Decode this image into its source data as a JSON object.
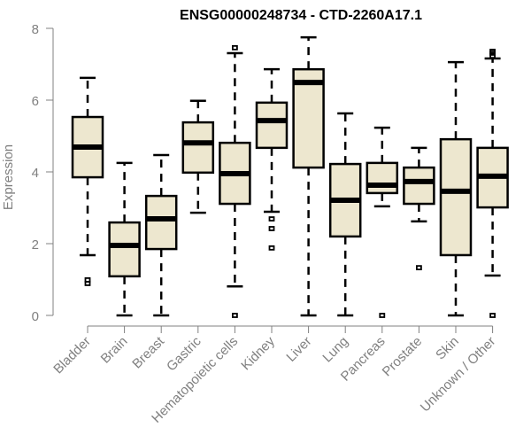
{
  "chart_data": {
    "type": "boxplot",
    "title": "ENSG00000248734 - CTD-2260A17.1",
    "xlabel": "",
    "ylabel": "Expression",
    "ylim": [
      0,
      8
    ],
    "yticks": [
      0,
      2,
      4,
      6,
      8
    ],
    "grid": false,
    "legend": "none",
    "box_color": "#ede7cf",
    "categories": [
      "Bladder",
      "Brain",
      "Breast",
      "Gastric",
      "Hematopoietic cells",
      "Kidney",
      "Liver",
      "Lung",
      "Pancreas",
      "Prostate",
      "Skin",
      "Unknown / Other"
    ],
    "series": [
      {
        "name": "Bladder",
        "whisker_low": 1.68,
        "q1": 3.85,
        "median": 4.69,
        "q3": 5.53,
        "whisker_high": 6.62,
        "outliers": [
          0.99,
          0.89
        ]
      },
      {
        "name": "Brain",
        "whisker_low": 0.0,
        "q1": 1.09,
        "median": 1.95,
        "q3": 2.59,
        "whisker_high": 4.25,
        "outliers": []
      },
      {
        "name": "Breast",
        "whisker_low": 0.0,
        "q1": 1.85,
        "median": 2.69,
        "q3": 3.33,
        "whisker_high": 4.47,
        "outliers": []
      },
      {
        "name": "Gastric",
        "whisker_low": 2.86,
        "q1": 3.98,
        "median": 4.81,
        "q3": 5.38,
        "whisker_high": 5.98,
        "outliers": []
      },
      {
        "name": "Hematopoietic cells",
        "whisker_low": 0.81,
        "q1": 3.11,
        "median": 3.95,
        "q3": 4.81,
        "whisker_high": 7.31,
        "outliers": [
          7.46,
          0.0
        ]
      },
      {
        "name": "Kidney",
        "whisker_low": 2.89,
        "q1": 4.67,
        "median": 5.43,
        "q3": 5.93,
        "whisker_high": 6.86,
        "outliers": [
          2.69,
          2.42,
          1.88
        ]
      },
      {
        "name": "Liver",
        "whisker_low": 0.0,
        "q1": 4.12,
        "median": 6.49,
        "q3": 6.86,
        "whisker_high": 7.75,
        "outliers": []
      },
      {
        "name": "Lung",
        "whisker_low": 0.0,
        "q1": 2.2,
        "median": 3.21,
        "q3": 4.22,
        "whisker_high": 5.63,
        "outliers": []
      },
      {
        "name": "Pancreas",
        "whisker_low": 3.04,
        "q1": 3.41,
        "median": 3.63,
        "q3": 4.25,
        "whisker_high": 5.23,
        "outliers": [
          0.0
        ]
      },
      {
        "name": "Prostate",
        "whisker_low": 2.62,
        "q1": 3.11,
        "median": 3.73,
        "q3": 4.12,
        "whisker_high": 4.67,
        "outliers": [
          1.33
        ]
      },
      {
        "name": "Skin",
        "whisker_low": 0.0,
        "q1": 1.68,
        "median": 3.46,
        "q3": 4.91,
        "whisker_high": 7.06,
        "outliers": []
      },
      {
        "name": "Unknown / Other",
        "whisker_low": 1.11,
        "q1": 3.01,
        "median": 3.88,
        "q3": 4.67,
        "whisker_high": 7.16,
        "outliers": [
          7.36,
          7.31,
          7.23,
          0.0
        ]
      }
    ]
  }
}
